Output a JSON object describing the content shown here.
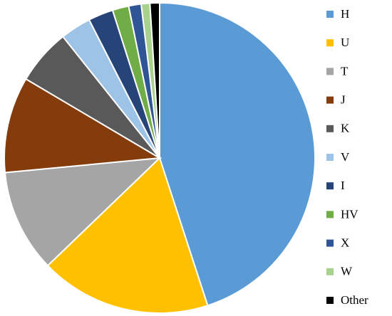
{
  "chart_data": {
    "type": "pie",
    "categories": [
      "H",
      "U",
      "T",
      "J",
      "K",
      "V",
      "I",
      "HV",
      "X",
      "W",
      "Other"
    ],
    "values": [
      45,
      17.8,
      10.7,
      10,
      5.8,
      3.2,
      2.6,
      1.7,
      1.3,
      0.9,
      1.0
    ],
    "colors": [
      "#5b9bd5",
      "#ffc000",
      "#a5a5a5",
      "#843c0c",
      "#595959",
      "#9dc3e6",
      "#264478",
      "#70ad47",
      "#2f5597",
      "#a9d18e",
      "#000000"
    ],
    "legend": "right"
  }
}
